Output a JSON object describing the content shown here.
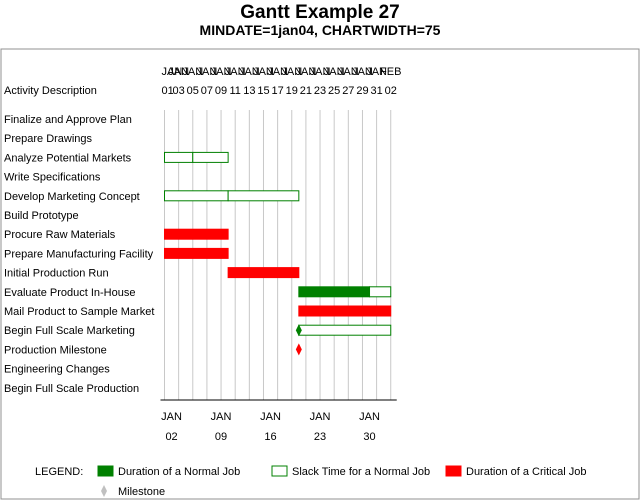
{
  "chart_data": {
    "type": "gantt",
    "title": "Gantt Example 27",
    "subtitle": "MINDATE=1jan04, CHARTWIDTH=75",
    "activity_header": "Activity Description",
    "top_axis": {
      "months": [
        "JAN",
        "JAN",
        "JAN",
        "JAN",
        "JAN",
        "JAN",
        "JAN",
        "JAN",
        "JAN",
        "JAN",
        "JAN",
        "JAN",
        "JAN",
        "JAN",
        "JAN",
        "JAN",
        "FEB"
      ],
      "days": [
        "01",
        "03",
        "05",
        "07",
        "09",
        "11",
        "13",
        "15",
        "17",
        "19",
        "21",
        "23",
        "25",
        "27",
        "29",
        "31",
        "02"
      ],
      "tick_offsets": [
        0,
        2,
        4,
        6,
        8,
        10,
        12,
        14,
        16,
        18,
        20,
        22,
        24,
        26,
        28,
        30,
        32
      ]
    },
    "bottom_axis": {
      "months": [
        "JAN",
        "JAN",
        "JAN",
        "JAN",
        "JAN"
      ],
      "days": [
        "02",
        "09",
        "16",
        "23",
        "30"
      ],
      "tick_offsets": [
        1,
        8,
        15,
        22,
        29
      ]
    },
    "activities": [
      "Finalize and Approve Plan",
      "Prepare Drawings",
      "Analyze Potential Markets",
      "Write Specifications",
      "Develop Marketing Concept",
      "Build Prototype",
      "Procure Raw Materials",
      "Prepare Manufacturing Facility",
      "Initial Production Run",
      "Evaluate Product In-House",
      "Mail Product to Sample Market",
      "Begin Full Scale Marketing",
      "Production Milestone",
      "Engineering Changes",
      "Begin Full Scale Production"
    ],
    "bars": [
      {
        "row": 2,
        "kind": "slack",
        "start": 0,
        "end": 4
      },
      {
        "row": 2,
        "kind": "slack",
        "start": 4,
        "end": 9
      },
      {
        "row": 4,
        "kind": "slack",
        "start": 0,
        "end": 9
      },
      {
        "row": 4,
        "kind": "slack",
        "start": 9,
        "end": 19
      },
      {
        "row": 6,
        "kind": "critical",
        "start": 0,
        "end": 9
      },
      {
        "row": 7,
        "kind": "critical",
        "start": 0,
        "end": 9
      },
      {
        "row": 8,
        "kind": "critical",
        "start": 9,
        "end": 19
      },
      {
        "row": 9,
        "kind": "normal",
        "start": 19,
        "end": 29
      },
      {
        "row": 9,
        "kind": "slack",
        "start": 29,
        "end": 32
      },
      {
        "row": 10,
        "kind": "critical",
        "start": 19,
        "end": 32
      },
      {
        "row": 11,
        "kind": "slack",
        "start": 19,
        "end": 32
      }
    ],
    "milestones": [
      {
        "row": 11,
        "kind": "normal",
        "at": 19
      },
      {
        "row": 12,
        "kind": "critical",
        "at": 19
      }
    ],
    "legend": {
      "label": "LEGEND:",
      "items": [
        {
          "kind": "normal",
          "text": "Duration of a Normal Job"
        },
        {
          "kind": "slack",
          "text": "Slack Time for a Normal Job"
        },
        {
          "kind": "critical",
          "text": "Duration of a Critical Job"
        },
        {
          "kind": "milestone",
          "text": "Milestone"
        }
      ]
    },
    "colors": {
      "normal": "#008000",
      "slack_border": "#008000",
      "slack_fill": "#ffffff",
      "critical": "#ff0000",
      "milestone_legend": "#c0c0c0",
      "grid": "#c8c8c8",
      "frame": "#909090"
    }
  }
}
